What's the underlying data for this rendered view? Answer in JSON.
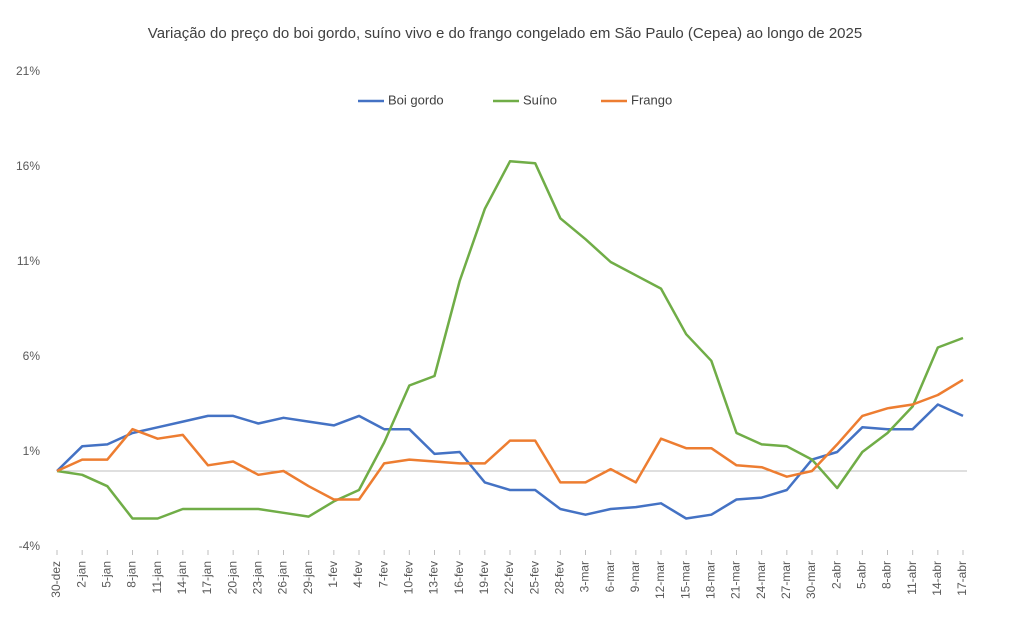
{
  "chart_data": {
    "type": "line",
    "title": "Variação do preço do boi gordo, suíno vivo e do frango congelado em São Paulo (Cepea) ao longo de 2025",
    "categories": [
      "30-dez",
      "2-jan",
      "5-jan",
      "8-jan",
      "11-jan",
      "14-jan",
      "17-jan",
      "20-jan",
      "23-jan",
      "26-jan",
      "29-jan",
      "1-fev",
      "4-fev",
      "7-fev",
      "10-fev",
      "13-fev",
      "16-fev",
      "19-fev",
      "22-fev",
      "25-fev",
      "28-fev",
      "3-mar",
      "6-mar",
      "9-mar",
      "12-mar",
      "15-mar",
      "18-mar",
      "21-mar",
      "24-mar",
      "27-mar",
      "30-mar",
      "2-abr",
      "5-abr",
      "8-abr",
      "11-abr",
      "14-abr",
      "17-abr"
    ],
    "series": [
      {
        "name": "Boi gordo",
        "color": "#4472c4",
        "values": [
          0,
          1.3,
          1.4,
          2.0,
          2.3,
          2.6,
          2.9,
          2.9,
          2.5,
          2.8,
          2.6,
          2.4,
          2.9,
          2.2,
          2.2,
          0.9,
          1.0,
          -0.6,
          -1.0,
          -1.0,
          -2.0,
          -2.3,
          -2.0,
          -1.9,
          -1.7,
          -2.5,
          -2.3,
          -1.5,
          -1.4,
          -1.0,
          0.6,
          1.0,
          2.3,
          2.2,
          2.2,
          3.5,
          2.9
        ]
      },
      {
        "name": "Suíno",
        "color": "#70ad47",
        "values": [
          0,
          -0.2,
          -0.8,
          -2.5,
          -2.5,
          -2.0,
          -2.0,
          -2.0,
          -2.0,
          -2.2,
          -2.4,
          -1.6,
          -1.0,
          1.5,
          4.5,
          5.0,
          10.0,
          13.8,
          16.3,
          16.2,
          13.3,
          12.2,
          11.0,
          10.3,
          9.6,
          7.2,
          5.8,
          2.0,
          1.4,
          1.3,
          0.6,
          -0.9,
          1.0,
          2.0,
          3.4,
          6.5,
          7.0
        ]
      },
      {
        "name": "Frango",
        "color": "#ed7d31",
        "values": [
          0,
          0.6,
          0.6,
          2.2,
          1.7,
          1.9,
          0.3,
          0.5,
          -0.2,
          0.0,
          -0.8,
          -1.5,
          -1.5,
          0.4,
          0.6,
          0.5,
          0.4,
          0.4,
          1.6,
          1.6,
          -0.6,
          -0.6,
          0.1,
          -0.6,
          1.7,
          1.2,
          1.2,
          0.3,
          0.2,
          -0.3,
          0.0,
          1.4,
          2.9,
          3.3,
          3.5,
          4.0,
          4.8
        ]
      }
    ],
    "ylim": [
      -4,
      21
    ],
    "yticks": [
      {
        "value": -4,
        "label": "-4%"
      },
      {
        "value": 1,
        "label": "1%"
      },
      {
        "value": 6,
        "label": "6%"
      },
      {
        "value": 11,
        "label": "11%"
      },
      {
        "value": 16,
        "label": "16%"
      },
      {
        "value": 21,
        "label": "21%"
      }
    ],
    "grid": false,
    "legend": "top"
  }
}
